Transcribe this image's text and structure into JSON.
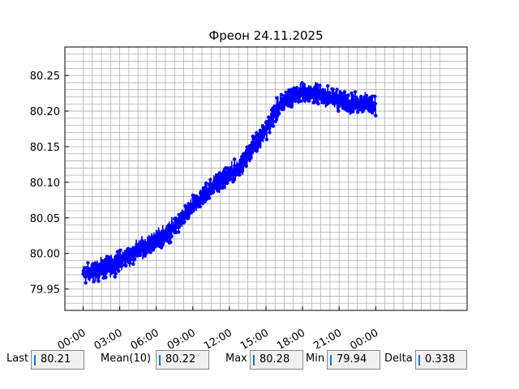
{
  "chart_data": {
    "type": "line",
    "title": "Фреон 24.11.2025",
    "xlabel": "",
    "ylabel": "",
    "x_ticks": [
      "00:00",
      "03:00",
      "06:00",
      "09:00",
      "12:00",
      "15:00",
      "18:00",
      "21:00",
      "00:00"
    ],
    "y_ticks": [
      "79.95",
      "80.00",
      "80.05",
      "80.10",
      "80.15",
      "80.20",
      "80.25"
    ],
    "xlim_hours": [
      -1.5,
      31.5
    ],
    "ylim": [
      79.92,
      80.29
    ],
    "grid": true,
    "line_color": "#0000ff",
    "series": [
      {
        "trend_hours": [
          0,
          1,
          2,
          3,
          4,
          5,
          6,
          7,
          8,
          9,
          10,
          11,
          12,
          13,
          14,
          15,
          16,
          17,
          18,
          19,
          20,
          21,
          22,
          23,
          24
        ],
        "trend_values": [
          79.97,
          79.975,
          79.98,
          79.99,
          80.0,
          80.01,
          80.02,
          80.03,
          80.045,
          80.065,
          80.085,
          80.1,
          80.11,
          80.125,
          80.15,
          80.175,
          80.205,
          80.22,
          80.225,
          80.225,
          80.22,
          80.215,
          80.21,
          80.21,
          80.21
        ],
        "noise_amplitude": 0.02
      }
    ]
  },
  "stats": {
    "last_label": "Last",
    "last_value": "80.21",
    "mean_label": "Mean(10)",
    "mean_value": "80.22",
    "max_label": "Max",
    "max_value": "80.28",
    "min_label": "Min",
    "min_value": "79.94",
    "delta_label": "Delta",
    "delta_value": "0.338"
  }
}
